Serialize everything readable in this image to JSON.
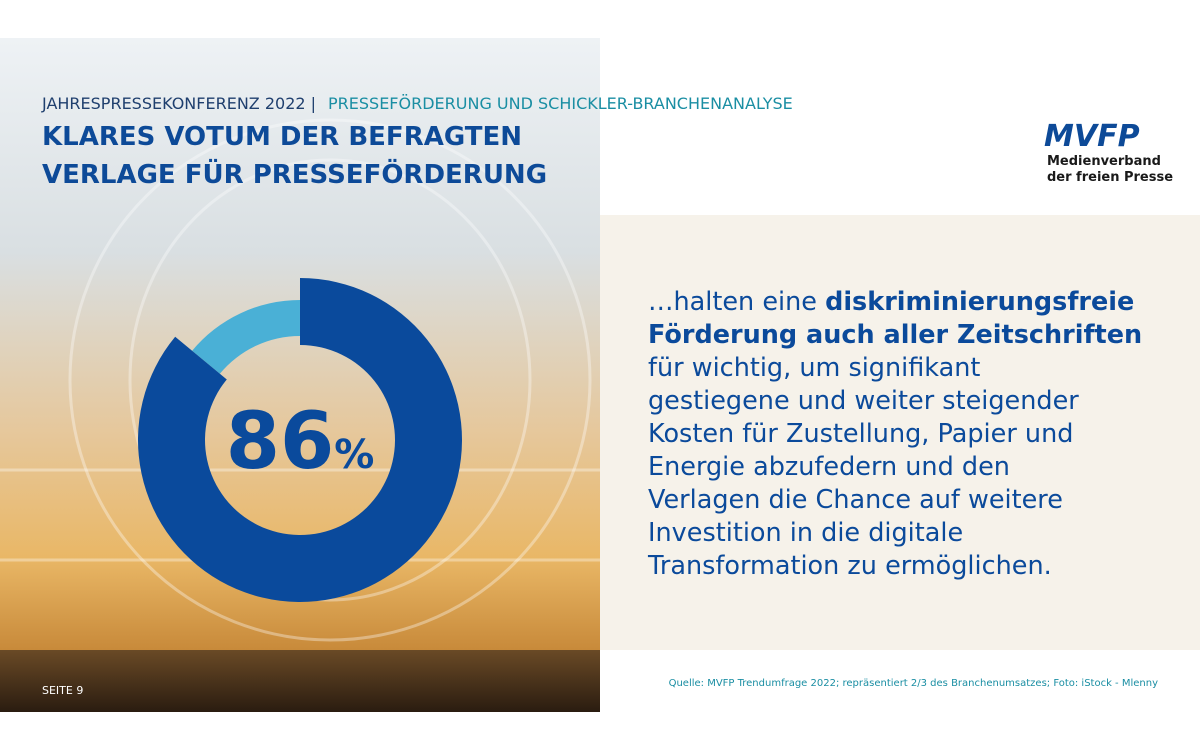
{
  "header": {
    "kicker": "JAHRESPRESSEKONFERENZ 2022 |",
    "kicker_topic": "PRESSEFÖRDERUNG UND SCHICKLER-BRANCHENANALYSE",
    "title_lines": [
      "KLARES VOTUM DER BEFRAGTEN",
      "VERLAGE FÜR PRESSEFÖRDERUNG"
    ]
  },
  "logo": {
    "mark": "MVFP",
    "lines": [
      "Medienverband",
      "der freien Presse"
    ]
  },
  "chart_data": {
    "type": "donut",
    "value": 86,
    "unit": "%",
    "color": "#0a4a9c",
    "rest_color": "#4ab0d6"
  },
  "statement": {
    "lines": [
      [
        {
          "text": "…halten eine ",
          "bold": false
        },
        {
          "text": "diskriminierungsfreie",
          "bold": true
        }
      ],
      [
        {
          "text": "Förderung auch aller Zeitschriften",
          "bold": true
        }
      ],
      [
        {
          "text": "für wichtig, um signifikant",
          "bold": false
        }
      ],
      [
        {
          "text": "gestiegene und weiter steigender",
          "bold": false
        }
      ],
      [
        {
          "text": "Kosten für Zustellung, Papier und",
          "bold": false
        }
      ],
      [
        {
          "text": "Energie abzufedern und den",
          "bold": false
        }
      ],
      [
        {
          "text": "Verlagen die Chance auf weitere",
          "bold": false
        }
      ],
      [
        {
          "text": "Investition in die digitale",
          "bold": false
        }
      ],
      [
        {
          "text": "Transformation zu ermöglichen.",
          "bold": false
        }
      ]
    ]
  },
  "footer": {
    "page": "SEITE 9",
    "source": "Quelle: MVFP Trendumfrage 2022; repräsentiert 2/3 des Branchenumsatzes; Foto: iStock - Mlenny"
  }
}
